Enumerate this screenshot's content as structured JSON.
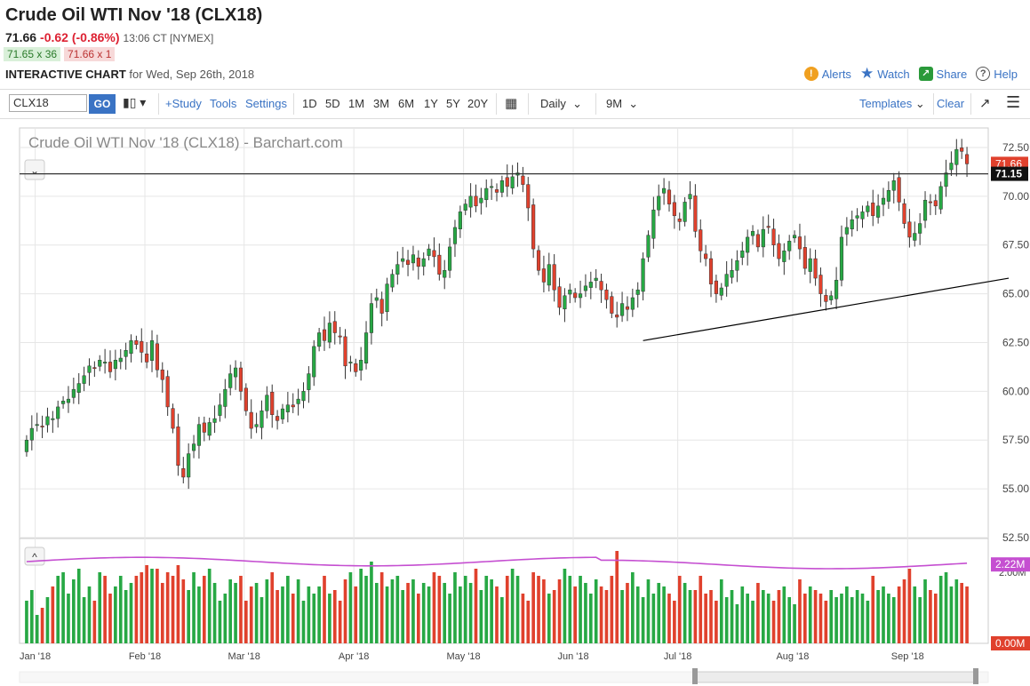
{
  "header": {
    "title": "Crude Oil WTI Nov '18 (CLX18)",
    "last": "71.66",
    "change": "-0.62 (-0.86%)",
    "time": "13:06 CT [NYMEX]",
    "bid": "71.65 x 36",
    "ask": "71.66 x 1",
    "interactive_label": "INTERACTIVE CHART",
    "date_label": "for Wed, Sep 26th, 2018"
  },
  "actions": {
    "alerts": "Alerts",
    "watch": "Watch",
    "share": "Share",
    "help": "Help"
  },
  "toolbar": {
    "symbol": "CLX18",
    "go": "GO",
    "study": "+Study",
    "tools": "Tools",
    "settings": "Settings",
    "periods": [
      "1D",
      "5D",
      "1M",
      "3M",
      "6M",
      "1Y",
      "5Y",
      "20Y"
    ],
    "interval": "Daily",
    "range": "9M",
    "templates": "Templates",
    "clear": "Clear"
  },
  "colors": {
    "up": "#27a844",
    "down": "#e0412d",
    "volume_line": "#c54fd1",
    "support_line": "#000000"
  },
  "chart_data": {
    "type": "candlestick",
    "title": "Crude Oil WTI Nov '18 (CLX18) - Barchart.com",
    "ylim": [
      52.5,
      73.5
    ],
    "yticks": [
      "72.50",
      "70.00",
      "67.50",
      "65.00",
      "62.50",
      "60.00",
      "57.50",
      "55.00",
      "52.50"
    ],
    "xticks": [
      {
        "label": "Jan '18",
        "i": 3
      },
      {
        "label": "Feb '18",
        "i": 24
      },
      {
        "label": "Mar '18",
        "i": 43
      },
      {
        "label": "Apr '18",
        "i": 64
      },
      {
        "label": "May '18",
        "i": 85
      },
      {
        "label": "Jun '18",
        "i": 106
      },
      {
        "label": "Jul '18",
        "i": 126
      },
      {
        "label": "Aug '18",
        "i": 148
      },
      {
        "label": "Sep '18",
        "i": 170
      }
    ],
    "last_price": "71.66",
    "horizontal_line": "71.15",
    "trendline": [
      {
        "i": 118,
        "y": 62.6
      },
      {
        "i": 188,
        "y": 65.8
      }
    ],
    "closes": [
      57.5,
      58.1,
      58.3,
      58.2,
      58.7,
      58.6,
      59.2,
      59.5,
      59.6,
      60.1,
      60.4,
      60.8,
      61.3,
      61.2,
      61.6,
      61.5,
      61.0,
      61.6,
      61.7,
      62.1,
      62.6,
      62.4,
      62.0,
      61.5,
      62.6,
      61.1,
      60.6,
      59.2,
      58.1,
      56.2,
      55.6,
      56.8,
      57.3,
      58.3,
      57.9,
      58.4,
      58.6,
      59.3,
      60.1,
      60.9,
      61.2,
      60.0,
      59.0,
      58.1,
      58.3,
      59.0,
      59.8,
      58.8,
      58.5,
      59.1,
      59.3,
      59.2,
      59.6,
      60.0,
      60.9,
      62.3,
      63.0,
      62.6,
      63.5,
      63.0,
      62.8,
      61.3,
      61.5,
      61.0,
      61.6,
      63.0,
      64.5,
      64.8,
      64.0,
      65.5,
      66.0,
      66.5,
      66.8,
      66.5,
      67.0,
      66.4,
      66.8,
      67.3,
      66.9,
      66.0,
      66.2,
      67.4,
      68.4,
      69.2,
      69.6,
      70.0,
      69.5,
      69.9,
      70.4,
      70.5,
      70.2,
      70.8,
      70.5,
      71.0,
      71.2,
      70.6,
      69.4,
      67.3,
      66.2,
      65.6,
      66.5,
      65.2,
      64.3,
      64.9,
      65.2,
      64.8,
      65.0,
      65.4,
      65.6,
      65.8,
      65.2,
      64.7,
      64.0,
      63.8,
      64.5,
      64.2,
      64.8,
      65.2,
      66.8,
      68.0,
      69.3,
      70.0,
      70.4,
      69.6,
      69.0,
      68.7,
      69.7,
      70.1,
      68.2,
      67.2,
      66.8,
      65.5,
      65.0,
      65.3,
      66.0,
      66.2,
      66.7,
      67.2,
      67.9,
      68.2,
      67.4,
      68.3,
      68.4,
      67.5,
      66.8,
      67.2,
      67.7,
      68.0,
      67.3,
      66.3,
      66.8,
      65.8,
      65.0,
      64.6,
      64.9,
      65.7,
      67.9,
      68.4,
      68.8,
      69.0,
      69.2,
      69.5,
      69.0,
      69.5,
      69.9,
      70.3,
      70.8,
      69.7,
      68.6,
      67.9,
      68.1,
      68.6,
      69.8,
      69.7,
      69.5,
      70.5,
      71.2,
      71.7,
      72.4,
      72.3,
      71.66
    ],
    "volume_values": [
      1.2,
      1.5,
      0.8,
      1.0,
      1.3,
      1.6,
      1.9,
      2.0,
      1.4,
      1.8,
      2.1,
      1.3,
      1.6,
      1.2,
      2.0,
      1.9,
      1.4,
      1.6,
      1.9,
      1.5,
      1.7,
      1.9,
      2.0,
      2.2,
      2.1,
      2.1,
      1.7,
      2.0,
      1.9,
      2.2,
      1.8,
      1.5,
      2.0,
      1.6,
      1.9,
      2.1,
      1.7,
      1.2,
      1.4,
      1.8,
      1.7,
      1.9,
      1.2,
      1.6,
      1.7,
      1.3,
      1.8,
      2.0,
      1.5,
      1.6,
      1.9,
      1.4,
      1.8,
      1.2,
      1.6,
      1.4,
      1.6,
      1.9,
      1.4,
      1.5,
      1.2,
      1.8,
      2.0,
      1.6,
      2.1,
      1.9,
      2.3,
      1.7,
      2.0,
      1.6,
      1.8,
      1.9,
      1.5,
      1.7,
      1.8,
      1.4,
      1.7,
      1.6,
      2.0,
      1.9,
      1.7,
      1.4,
      2.0,
      1.6,
      1.9,
      1.7,
      2.1,
      1.5,
      1.9,
      1.8,
      1.6,
      1.3,
      1.9,
      2.1,
      1.9,
      1.4,
      1.2,
      2.0,
      1.9,
      1.8,
      1.4,
      1.5,
      1.8,
      2.1,
      1.9,
      1.6,
      1.9,
      1.7,
      1.4,
      1.8,
      1.6,
      1.5,
      1.9,
      2.6,
      1.5,
      1.7,
      2.0,
      1.6,
      1.3,
      1.8,
      1.4,
      1.7,
      1.6,
      1.4,
      1.2,
      1.9,
      1.7,
      1.5,
      1.5,
      1.9,
      1.4,
      1.5,
      1.2,
      1.8,
      1.3,
      1.5,
      1.1,
      1.6,
      1.4,
      1.2,
      1.7,
      1.5,
      1.4,
      1.2,
      1.5,
      1.6,
      1.3,
      1.1,
      1.8,
      1.4,
      1.6,
      1.5,
      1.4,
      1.2,
      1.5,
      1.3,
      1.4,
      1.6,
      1.3,
      1.5,
      1.4,
      1.2,
      1.9,
      1.5,
      1.6,
      1.4,
      1.3,
      1.6,
      1.8,
      2.1,
      1.6,
      1.3,
      1.8,
      1.5,
      1.4,
      1.9,
      2.0,
      1.6,
      1.8,
      1.7,
      1.6,
      1.5
    ],
    "volume_avg_label": "2.22M",
    "volume_axis_labels": [
      "2.00M",
      "0.00M"
    ]
  }
}
